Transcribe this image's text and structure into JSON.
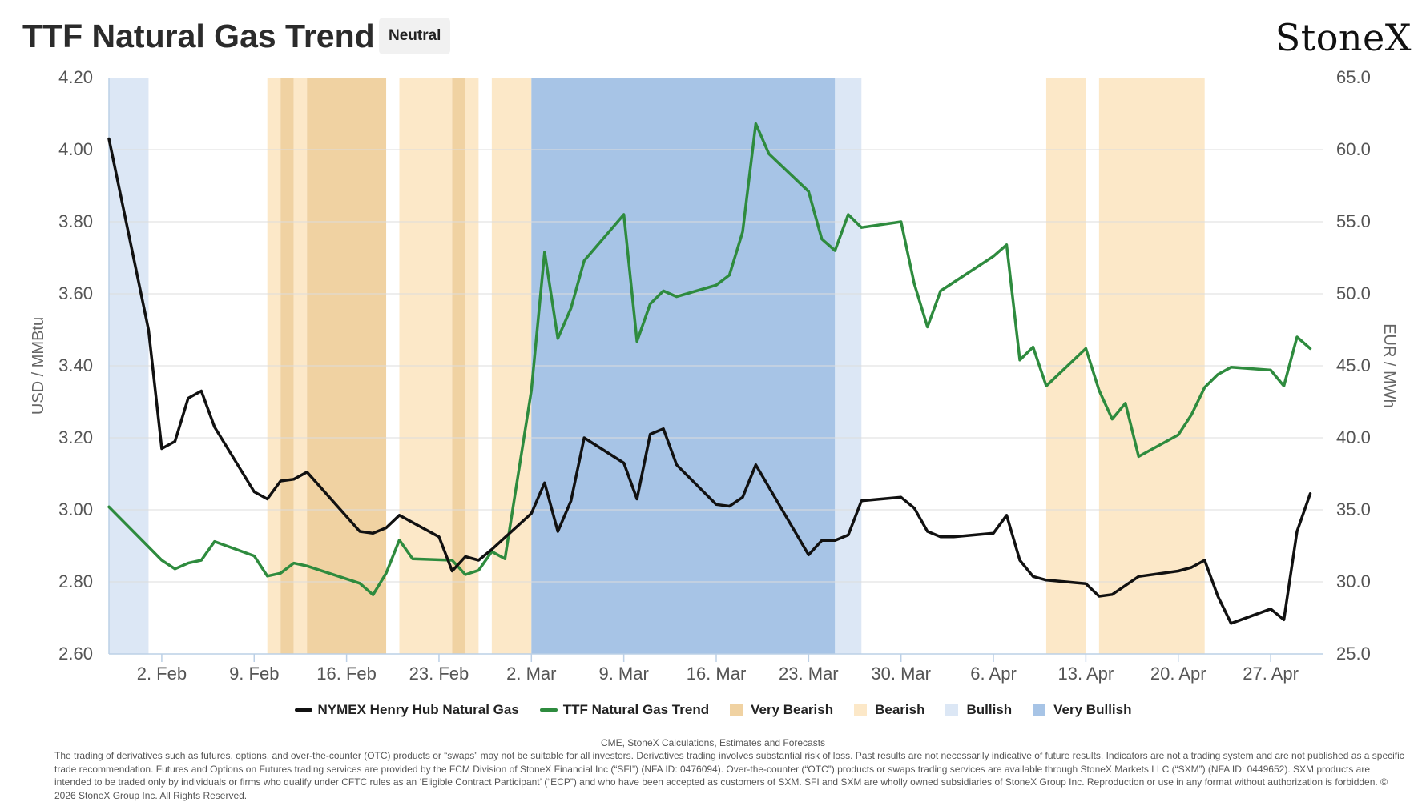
{
  "header": {
    "title": "TTF Natural Gas Trend",
    "badge": "Neutral",
    "logo": "StoneX"
  },
  "chart_data": {
    "type": "line",
    "title": "TTF Natural Gas Trend",
    "y_left": {
      "label": "USD / MMBtu",
      "range": [
        2.6,
        4.2
      ],
      "ticks": [
        "2.60",
        "2.80",
        "3.00",
        "3.20",
        "3.40",
        "3.60",
        "3.80",
        "4.00",
        "4.20"
      ]
    },
    "y_right": {
      "label": "EUR / MWh",
      "range": [
        25,
        65
      ],
      "ticks": [
        "25.0",
        "30.0",
        "35.0",
        "40.0",
        "45.0",
        "50.0",
        "55.0",
        "60.0",
        "65.0"
      ]
    },
    "x_range": [
      "2026-01-29",
      "2026-05-01"
    ],
    "x_ticks": [
      {
        "date": "2026-02-02",
        "label": "2. Feb"
      },
      {
        "date": "2026-02-09",
        "label": "9. Feb"
      },
      {
        "date": "2026-02-16",
        "label": "16. Feb"
      },
      {
        "date": "2026-02-23",
        "label": "23. Feb"
      },
      {
        "date": "2026-03-02",
        "label": "2. Mar"
      },
      {
        "date": "2026-03-09",
        "label": "9. Mar"
      },
      {
        "date": "2026-03-16",
        "label": "16. Mar"
      },
      {
        "date": "2026-03-23",
        "label": "23. Mar"
      },
      {
        "date": "2026-03-30",
        "label": "30. Mar"
      },
      {
        "date": "2026-04-06",
        "label": "6. Apr"
      },
      {
        "date": "2026-04-13",
        "label": "13. Apr"
      },
      {
        "date": "2026-04-20",
        "label": "20. Apr"
      },
      {
        "date": "2026-04-27",
        "label": "27. Apr"
      }
    ],
    "grid": true,
    "legend_position": "bottom-center",
    "bands": [
      {
        "start": "2026-01-29",
        "end": "2026-02-01",
        "category": "Bullish"
      },
      {
        "start": "2026-02-10",
        "end": "2026-02-11",
        "category": "Bearish"
      },
      {
        "start": "2026-02-11",
        "end": "2026-02-12",
        "category": "Very Bearish"
      },
      {
        "start": "2026-02-12",
        "end": "2026-02-13",
        "category": "Bearish"
      },
      {
        "start": "2026-02-13",
        "end": "2026-02-19",
        "category": "Very Bearish"
      },
      {
        "start": "2026-02-20",
        "end": "2026-02-24",
        "category": "Bearish"
      },
      {
        "start": "2026-02-24",
        "end": "2026-02-25",
        "category": "Very Bearish"
      },
      {
        "start": "2026-02-25",
        "end": "2026-02-26",
        "category": "Bearish"
      },
      {
        "start": "2026-02-27",
        "end": "2026-03-02",
        "category": "Bearish"
      },
      {
        "start": "2026-03-02",
        "end": "2026-03-25",
        "category": "Very Bullish"
      },
      {
        "start": "2026-03-25",
        "end": "2026-03-27",
        "category": "Bullish"
      },
      {
        "start": "2026-04-10",
        "end": "2026-04-13",
        "category": "Bearish"
      },
      {
        "start": "2026-04-14",
        "end": "2026-04-22",
        "category": "Bearish"
      }
    ],
    "band_colors": {
      "Very Bearish": "#f0d2a2",
      "Bearish": "#fce8c8",
      "Bullish": "#dce7f5",
      "Very Bullish": "#a7c4e6"
    },
    "series": [
      {
        "name": "NYMEX Henry Hub Natural Gas",
        "axis": "left",
        "color": "#111111",
        "points": [
          [
            "2026-01-29",
            4.03
          ],
          [
            "2026-02-01",
            3.5
          ],
          [
            "2026-02-02",
            3.17
          ],
          [
            "2026-02-03",
            3.19
          ],
          [
            "2026-02-04",
            3.31
          ],
          [
            "2026-02-05",
            3.33
          ],
          [
            "2026-02-06",
            3.23
          ],
          [
            "2026-02-09",
            3.05
          ],
          [
            "2026-02-10",
            3.03
          ],
          [
            "2026-02-11",
            3.08
          ],
          [
            "2026-02-12",
            3.085
          ],
          [
            "2026-02-13",
            3.105
          ],
          [
            "2026-02-17",
            2.94
          ],
          [
            "2026-02-18",
            2.935
          ],
          [
            "2026-02-19",
            2.95
          ],
          [
            "2026-02-20",
            2.985
          ],
          [
            "2026-02-23",
            2.925
          ],
          [
            "2026-02-24",
            2.83
          ],
          [
            "2026-02-25",
            2.87
          ],
          [
            "2026-02-26",
            2.86
          ],
          [
            "2026-02-27",
            2.89
          ],
          [
            "2026-03-02",
            2.99
          ],
          [
            "2026-03-03",
            3.075
          ],
          [
            "2026-03-04",
            2.94
          ],
          [
            "2026-03-05",
            3.025
          ],
          [
            "2026-03-06",
            3.2
          ],
          [
            "2026-03-09",
            3.13
          ],
          [
            "2026-03-10",
            3.03
          ],
          [
            "2026-03-11",
            3.21
          ],
          [
            "2026-03-12",
            3.225
          ],
          [
            "2026-03-13",
            3.125
          ],
          [
            "2026-03-16",
            3.015
          ],
          [
            "2026-03-17",
            3.01
          ],
          [
            "2026-03-18",
            3.035
          ],
          [
            "2026-03-19",
            3.125
          ],
          [
            "2026-03-23",
            2.875
          ],
          [
            "2026-03-24",
            2.915
          ],
          [
            "2026-03-25",
            2.915
          ],
          [
            "2026-03-26",
            2.93
          ],
          [
            "2026-03-27",
            3.025
          ],
          [
            "2026-03-30",
            3.035
          ],
          [
            "2026-03-31",
            3.005
          ],
          [
            "2026-04-01",
            2.94
          ],
          [
            "2026-04-02",
            2.925
          ],
          [
            "2026-04-03",
            2.925
          ],
          [
            "2026-04-06",
            2.935
          ],
          [
            "2026-04-07",
            2.985
          ],
          [
            "2026-04-08",
            2.86
          ],
          [
            "2026-04-09",
            2.815
          ],
          [
            "2026-04-10",
            2.805
          ],
          [
            "2026-04-13",
            2.795
          ],
          [
            "2026-04-14",
            2.76
          ],
          [
            "2026-04-15",
            2.765
          ],
          [
            "2026-04-17",
            2.815
          ],
          [
            "2026-04-20",
            2.83
          ],
          [
            "2026-04-21",
            2.84
          ],
          [
            "2026-04-22",
            2.86
          ],
          [
            "2026-04-23",
            2.76
          ],
          [
            "2026-04-24",
            2.685
          ],
          [
            "2026-04-27",
            2.725
          ],
          [
            "2026-04-28",
            2.695
          ],
          [
            "2026-04-29",
            2.94
          ],
          [
            "2026-04-30",
            3.045
          ]
        ]
      },
      {
        "name": "TTF Natural Gas Trend",
        "axis": "right",
        "color": "#2e8b3e",
        "points": [
          [
            "2026-01-29",
            35.2
          ],
          [
            "2026-02-02",
            31.5
          ],
          [
            "2026-02-03",
            30.9
          ],
          [
            "2026-02-04",
            31.3
          ],
          [
            "2026-02-05",
            31.5
          ],
          [
            "2026-02-06",
            32.8
          ],
          [
            "2026-02-09",
            31.8
          ],
          [
            "2026-02-10",
            30.4
          ],
          [
            "2026-02-11",
            30.6
          ],
          [
            "2026-02-12",
            31.3
          ],
          [
            "2026-02-13",
            31.1
          ],
          [
            "2026-02-17",
            29.9
          ],
          [
            "2026-02-18",
            29.1
          ],
          [
            "2026-02-19",
            30.6
          ],
          [
            "2026-02-20",
            32.9
          ],
          [
            "2026-02-21",
            31.6
          ],
          [
            "2026-02-24",
            31.5
          ],
          [
            "2026-02-25",
            30.5
          ],
          [
            "2026-02-26",
            30.8
          ],
          [
            "2026-02-27",
            32.1
          ],
          [
            "2026-02-28",
            31.6
          ],
          [
            "2026-03-02",
            43.3
          ],
          [
            "2026-03-03",
            52.9
          ],
          [
            "2026-03-04",
            46.9
          ],
          [
            "2026-03-05",
            49.0
          ],
          [
            "2026-03-06",
            52.3
          ],
          [
            "2026-03-09",
            55.5
          ],
          [
            "2026-03-10",
            46.7
          ],
          [
            "2026-03-11",
            49.3
          ],
          [
            "2026-03-12",
            50.2
          ],
          [
            "2026-03-13",
            49.8
          ],
          [
            "2026-03-16",
            50.6
          ],
          [
            "2026-03-17",
            51.3
          ],
          [
            "2026-03-18",
            54.3
          ],
          [
            "2026-03-19",
            61.8
          ],
          [
            "2026-03-20",
            59.7
          ],
          [
            "2026-03-23",
            57.1
          ],
          [
            "2026-03-24",
            53.8
          ],
          [
            "2026-03-25",
            53.0
          ],
          [
            "2026-03-26",
            55.5
          ],
          [
            "2026-03-27",
            54.6
          ],
          [
            "2026-03-30",
            55.0
          ],
          [
            "2026-03-31",
            50.7
          ],
          [
            "2026-04-01",
            47.7
          ],
          [
            "2026-04-02",
            50.2
          ],
          [
            "2026-04-06",
            52.6
          ],
          [
            "2026-04-07",
            53.4
          ],
          [
            "2026-04-08",
            45.4
          ],
          [
            "2026-04-09",
            46.3
          ],
          [
            "2026-04-10",
            43.6
          ],
          [
            "2026-04-13",
            46.2
          ],
          [
            "2026-04-14",
            43.3
          ],
          [
            "2026-04-15",
            41.3
          ],
          [
            "2026-04-16",
            42.4
          ],
          [
            "2026-04-17",
            38.7
          ],
          [
            "2026-04-20",
            40.2
          ],
          [
            "2026-04-21",
            41.6
          ],
          [
            "2026-04-22",
            43.5
          ],
          [
            "2026-04-23",
            44.4
          ],
          [
            "2026-04-24",
            44.9
          ],
          [
            "2026-04-27",
            44.7
          ],
          [
            "2026-04-28",
            43.6
          ],
          [
            "2026-04-29",
            47.0
          ],
          [
            "2026-04-30",
            46.2
          ]
        ]
      }
    ]
  },
  "legend": {
    "items": [
      {
        "kind": "line",
        "label": "NYMEX Henry Hub Natural Gas",
        "color": "#111111"
      },
      {
        "kind": "line",
        "label": "TTF Natural Gas Trend",
        "color": "#2e8b3e"
      },
      {
        "kind": "box",
        "label": "Very Bearish",
        "color": "#f0d2a2"
      },
      {
        "kind": "box",
        "label": "Bearish",
        "color": "#fce8c8"
      },
      {
        "kind": "box",
        "label": "Bullish",
        "color": "#dce7f5"
      },
      {
        "kind": "box",
        "label": "Very Bullish",
        "color": "#a7c4e6"
      }
    ]
  },
  "footer": {
    "source": "CME, StoneX Calculations, Estimates and Forecasts",
    "disclaimer": "The trading of derivatives such as futures, options, and over-the-counter (OTC) products or “swaps” may not be suitable for all investors. Derivatives trading involves substantial risk of loss. Past results are not necessarily indicative of future results. Indicators are not a trading system and are not published as a specific trade recommendation. Futures and Options on Futures trading services are provided by the FCM Division of StoneX Financial Inc (“SFI”) (NFA ID: 0476094). Over-the-counter (“OTC”) products or swaps trading services are available through StoneX Markets LLC (“SXM”) (NFA ID: 0449652). SXM products are intended to be traded only by individuals or firms who qualify under CFTC rules as an ‘Eligible Contract Participant’ (“ECP”) and who have been accepted as customers of SXM. SFI and SXM are wholly owned subsidiaries of StoneX Group Inc. Reproduction or use in any format without authorization is forbidden. © 2026 StoneX Group Inc. All Rights Reserved."
  }
}
